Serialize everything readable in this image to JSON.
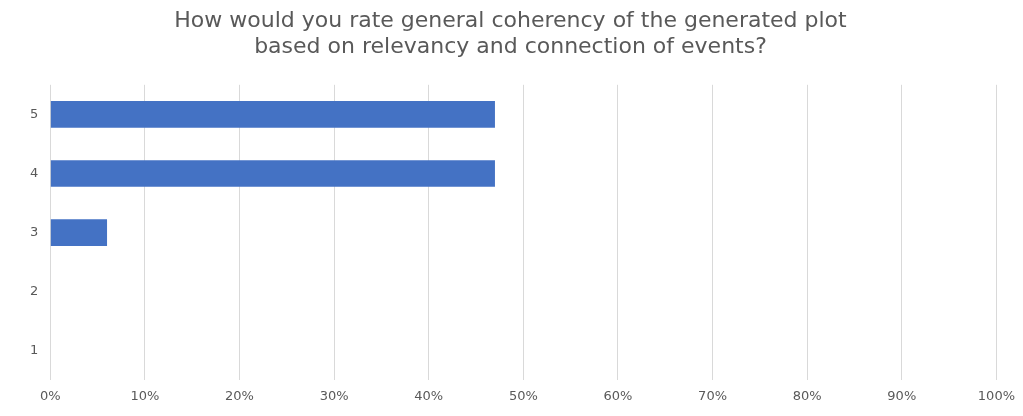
{
  "chart_data": {
    "type": "bar",
    "orientation": "horizontal",
    "title": "How would you rate general coherency of the generated plot\nbased on relevancy and connection of events?",
    "categories": [
      "5",
      "4",
      "3",
      "2",
      "1"
    ],
    "values": [
      47,
      47,
      6,
      0,
      0
    ],
    "color": "#4472c4",
    "xlim": [
      0,
      100
    ],
    "xticks": [
      {
        "value": 0,
        "label": "0%"
      },
      {
        "value": 10,
        "label": "10%"
      },
      {
        "value": 20,
        "label": "20%"
      },
      {
        "value": 30,
        "label": "30%"
      },
      {
        "value": 40,
        "label": "40%"
      },
      {
        "value": 50,
        "label": "50%"
      },
      {
        "value": 60,
        "label": "60%"
      },
      {
        "value": 70,
        "label": "70%"
      },
      {
        "value": 80,
        "label": "80%"
      },
      {
        "value": 90,
        "label": "90%"
      },
      {
        "value": 100,
        "label": "100%"
      }
    ],
    "grid": "x",
    "legend": false
  }
}
